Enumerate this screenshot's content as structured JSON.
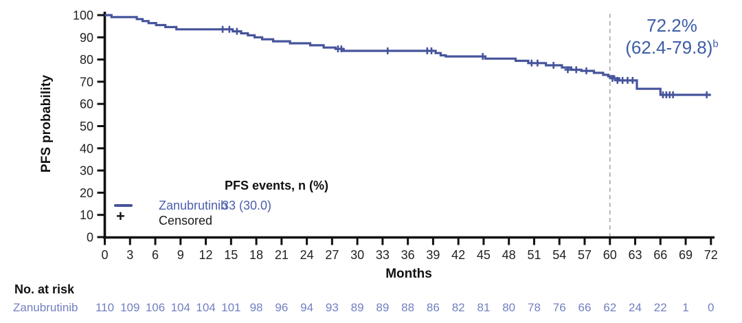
{
  "colors": {
    "curve": "#46549C",
    "legend_text_blue": "#4C5EAC",
    "annotation_blue": "#3E5CA8",
    "risk_blue": "#7280C2",
    "axis_black": "#111111",
    "tick_label": "#222222",
    "reference_dash_gray": "#A6A6A6",
    "background": "#FFFFFF"
  },
  "figure": {
    "ylabel": "PFS probability",
    "xlabel": "Months",
    "annotation": {
      "line1": "72.2%",
      "line2": "(62.4-79.8)",
      "sup": "b"
    },
    "legend": {
      "header": "PFS events, n (%)",
      "series_label": "Zanubrutinib",
      "series_value": "33 (30.0)",
      "censored_marker": "+",
      "censored_label": "Censored"
    },
    "at_risk_header": "No. at risk",
    "at_risk_row_label": "Zanubrutinib"
  },
  "chart_data": {
    "type": "line",
    "step": "post",
    "title": "",
    "xlabel": "Months",
    "ylabel": "PFS probability",
    "xlim": [
      0,
      72
    ],
    "ylim": [
      0,
      100
    ],
    "xticks": [
      0,
      3,
      6,
      9,
      12,
      15,
      18,
      21,
      24,
      27,
      30,
      33,
      36,
      39,
      42,
      45,
      48,
      51,
      54,
      57,
      60,
      63,
      66,
      69,
      72
    ],
    "yticks": [
      0,
      10,
      20,
      30,
      40,
      50,
      60,
      70,
      80,
      90,
      100
    ],
    "grid": false,
    "legend_position": "inside lower-left",
    "reference_line": {
      "x": 60,
      "style": "dashed"
    },
    "annotation": {
      "text": "72.2% (62.4-79.8)b",
      "at_x": 60,
      "meaning": "landmark PFS estimate at 60 months"
    },
    "series": [
      {
        "name": "Zanubrutinib",
        "events_n_pct": "33 (30.0)",
        "points": [
          [
            0,
            100
          ],
          [
            0.8,
            99.1
          ],
          [
            3.8,
            98.2
          ],
          [
            4.5,
            97.3
          ],
          [
            5.2,
            96.4
          ],
          [
            6.1,
            95.5
          ],
          [
            7.2,
            94.6
          ],
          [
            8.5,
            93.6
          ],
          [
            15.2,
            92.7
          ],
          [
            16.2,
            91.8
          ],
          [
            17.0,
            90.9
          ],
          [
            17.8,
            90.0
          ],
          [
            18.7,
            89.1
          ],
          [
            20.0,
            88.2
          ],
          [
            22.0,
            87.3
          ],
          [
            24.4,
            86.4
          ],
          [
            26.0,
            85.4
          ],
          [
            27.4,
            84.8
          ],
          [
            28.3,
            83.9
          ],
          [
            39.3,
            82.9
          ],
          [
            39.9,
            81.9
          ],
          [
            40.5,
            81.4
          ],
          [
            45.2,
            80.4
          ],
          [
            48.8,
            79.4
          ],
          [
            50.3,
            78.4
          ],
          [
            52.4,
            77.4
          ],
          [
            54.3,
            76.4
          ],
          [
            55.4,
            75.4
          ],
          [
            56.6,
            74.9
          ],
          [
            58.1,
            74.0
          ],
          [
            59.2,
            73.1
          ],
          [
            59.8,
            72.4
          ],
          [
            60.5,
            71.5
          ],
          [
            61.1,
            70.6
          ],
          [
            63.2,
            66.8
          ],
          [
            66.0,
            64.1
          ],
          [
            72.0,
            64.1
          ]
        ],
        "censor_marks": [
          [
            14.0,
            93.6
          ],
          [
            14.8,
            93.6
          ],
          [
            15.7,
            92.7
          ],
          [
            27.7,
            84.8
          ],
          [
            28.1,
            84.8
          ],
          [
            33.6,
            83.9
          ],
          [
            38.3,
            83.9
          ],
          [
            38.8,
            83.9
          ],
          [
            44.9,
            81.4
          ],
          [
            50.7,
            78.4
          ],
          [
            51.4,
            78.4
          ],
          [
            53.3,
            77.4
          ],
          [
            55.0,
            75.4
          ],
          [
            56.0,
            75.4
          ],
          [
            57.2,
            74.9
          ],
          [
            60.3,
            71.5
          ],
          [
            60.9,
            70.6
          ],
          [
            61.5,
            70.6
          ],
          [
            62.1,
            70.6
          ],
          [
            62.7,
            70.6
          ],
          [
            66.3,
            64.1
          ],
          [
            66.7,
            64.1
          ],
          [
            67.1,
            64.1
          ],
          [
            67.5,
            64.1
          ],
          [
            71.5,
            64.1
          ]
        ]
      }
    ],
    "at_risk": {
      "header": "No. at risk",
      "categories": [
        0,
        3,
        6,
        9,
        12,
        15,
        18,
        21,
        24,
        27,
        30,
        33,
        36,
        39,
        42,
        45,
        48,
        51,
        54,
        57,
        60,
        63,
        66,
        69,
        72
      ],
      "rows": [
        {
          "label": "Zanubrutinib",
          "values": [
            110,
            109,
            106,
            104,
            104,
            101,
            98,
            96,
            94,
            93,
            89,
            89,
            88,
            86,
            82,
            81,
            80,
            78,
            76,
            66,
            62,
            24,
            22,
            1,
            0
          ]
        }
      ]
    }
  }
}
